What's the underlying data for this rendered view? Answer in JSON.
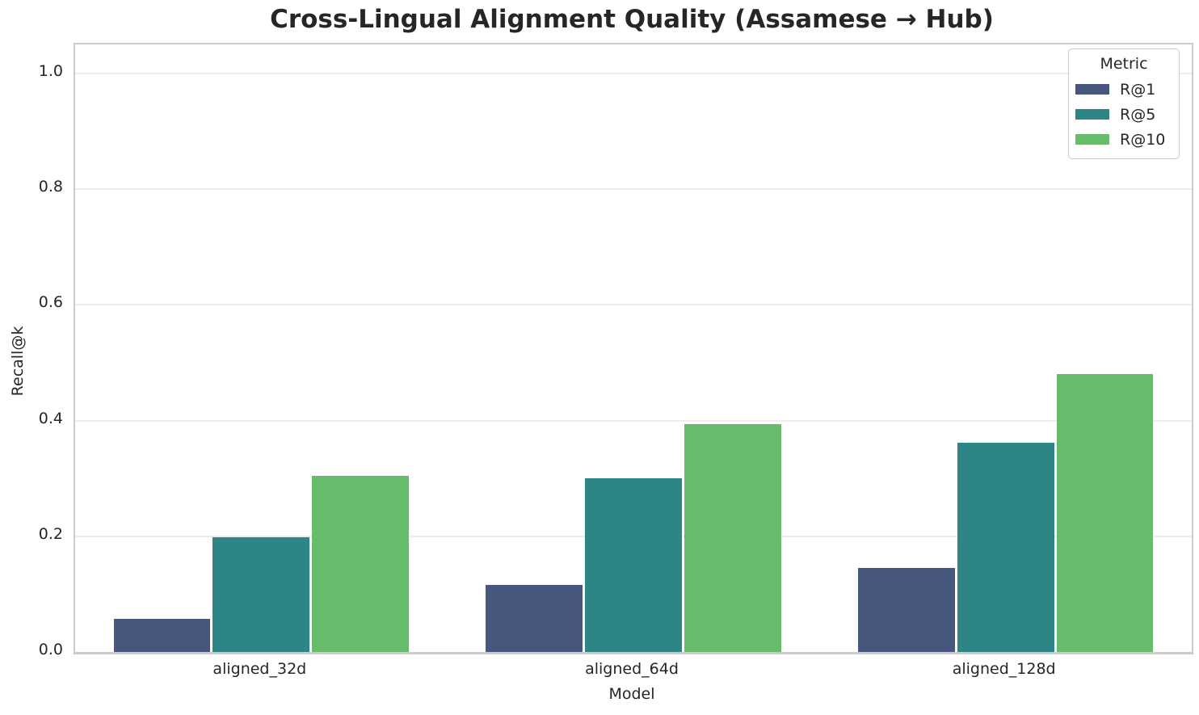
{
  "chart_data": {
    "type": "bar",
    "title": "Cross-Lingual Alignment Quality (Assamese → Hub)",
    "xlabel": "Model",
    "ylabel": "Recall@k",
    "categories": [
      "aligned_32d",
      "aligned_64d",
      "aligned_128d"
    ],
    "series": [
      {
        "name": "R@1",
        "color": "#47567D",
        "values": [
          0.057,
          0.116,
          0.145
        ]
      },
      {
        "name": "R@5",
        "color": "#2E8585",
        "values": [
          0.198,
          0.3,
          0.362
        ]
      },
      {
        "name": "R@10",
        "color": "#67BC6B",
        "values": [
          0.305,
          0.394,
          0.481
        ]
      }
    ],
    "ylim": [
      0,
      1.05
    ],
    "yticks": [
      "0.0",
      "0.2",
      "0.4",
      "0.6",
      "0.8",
      "1.0"
    ],
    "ytick_values": [
      0.0,
      0.2,
      0.4,
      0.6,
      0.8,
      1.0
    ],
    "grid": true,
    "legend": {
      "title": "Metric",
      "position": "upper right"
    },
    "style": {
      "background": "#ffffff",
      "gridline_color": "#ededed",
      "spine_color": "#cccccc",
      "text_color": "#262626"
    }
  }
}
